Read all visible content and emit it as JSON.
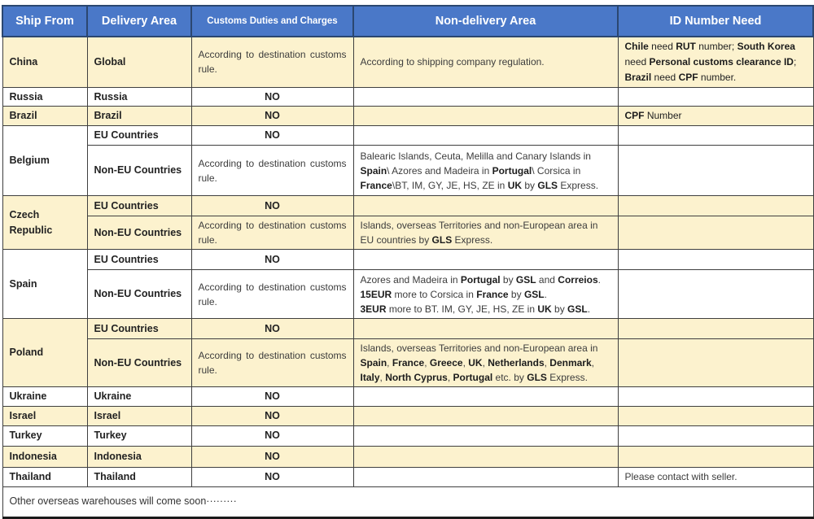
{
  "colors": {
    "header_bg": "#4A78C8",
    "header_border": "#2B4770",
    "header_text": "#FFFFFF",
    "row_highlight": "#FCF2CE",
    "grid_border": "#3F3F3F"
  },
  "header": {
    "ship_from": "Ship From",
    "delivery_area": "Delivery Area",
    "customs": "Customs Duties and Charges",
    "non_delivery": "Non-delivery Area",
    "id_need": "ID Number Need"
  },
  "rows": {
    "china": {
      "ship": "China",
      "area": "Global",
      "customs": "According to destination customs rule.",
      "nondelivery": "According to shipping company regulation.",
      "id_rich": [
        {
          "t": "Chile",
          "b": true
        },
        {
          "t": " need "
        },
        {
          "t": "RUT",
          "b": true
        },
        {
          "t": " number; "
        },
        {
          "t": "South Korea",
          "b": true
        },
        {
          "t": " need "
        },
        {
          "t": "Personal customs clearance ID",
          "b": true
        },
        {
          "t": "; "
        },
        {
          "t": "Brazil",
          "b": true
        },
        {
          "t": " need "
        },
        {
          "t": "CPF",
          "b": true
        },
        {
          "t": " number."
        }
      ]
    },
    "russia": {
      "ship": "Russia",
      "area": "Russia",
      "customs": "NO"
    },
    "brazil": {
      "ship": "Brazil",
      "area": "Brazil",
      "customs": "NO",
      "id_rich": [
        {
          "t": "CPF",
          "b": true
        },
        {
          "t": " Number"
        }
      ]
    },
    "belgium": {
      "ship": "Belgium",
      "eu_area": "EU Countries",
      "eu_customs": "NO",
      "noneu_area": "Non-EU Countries",
      "noneu_customs": "According to destination customs rule.",
      "noneu_nondelivery_rich": [
        {
          "t": "Balearic Islands, Ceuta, Melilla and Canary Islands in "
        },
        {
          "t": "Spain",
          "b": true
        },
        {
          "t": "\\ Azores and Madeira in "
        },
        {
          "t": "Portugal",
          "b": true
        },
        {
          "t": "\\ Corsica in "
        },
        {
          "t": "France",
          "b": true
        },
        {
          "t": "\\BT, IM, GY, JE, HS, ZE in "
        },
        {
          "t": "UK",
          "b": true
        },
        {
          "t": " by "
        },
        {
          "t": "GLS",
          "b": true
        },
        {
          "t": " Express."
        }
      ]
    },
    "czech": {
      "ship": "Czech Republic",
      "eu_area": "EU Countries",
      "eu_customs": "NO",
      "noneu_area": "Non-EU Countries",
      "noneu_customs": "According to destination customs rule.",
      "noneu_nondelivery_rich": [
        {
          "t": "Islands, overseas Territories and non-European area in EU countries by "
        },
        {
          "t": "GLS",
          "b": true
        },
        {
          "t": " Express."
        }
      ]
    },
    "spain": {
      "ship": "Spain",
      "eu_area": "EU Countries",
      "eu_customs": "NO",
      "noneu_area": "Non-EU Countries",
      "noneu_customs": "According to destination customs rule.",
      "noneu_nondelivery_rich": [
        {
          "t": "Azores and Madeira in "
        },
        {
          "t": "Portugal",
          "b": true
        },
        {
          "t": " by "
        },
        {
          "t": "GSL",
          "b": true
        },
        {
          "t": " and "
        },
        {
          "t": "Correios",
          "b": true
        },
        {
          "t": "."
        },
        {
          "br": true
        },
        {
          "t": "15EUR",
          "b": true
        },
        {
          "t": " more to Corsica in "
        },
        {
          "t": "France",
          "b": true
        },
        {
          "t": " by "
        },
        {
          "t": "GSL",
          "b": true
        },
        {
          "t": "."
        },
        {
          "br": true
        },
        {
          "t": "3EUR",
          "b": true
        },
        {
          "t": " more to BT. IM, GY, JE, HS, ZE in "
        },
        {
          "t": "UK",
          "b": true
        },
        {
          "t": " by "
        },
        {
          "t": "GSL",
          "b": true
        },
        {
          "t": "."
        }
      ]
    },
    "poland": {
      "ship": "Poland",
      "eu_area": "EU Countries",
      "eu_customs": "NO",
      "noneu_area": "Non-EU Countries",
      "noneu_customs": "According to destination customs rule.",
      "noneu_nondelivery_rich": [
        {
          "t": "Islands, overseas Territories and non-European area in "
        },
        {
          "t": "Spain",
          "b": true
        },
        {
          "t": ", "
        },
        {
          "t": "France",
          "b": true
        },
        {
          "t": ", "
        },
        {
          "t": "Greece",
          "b": true
        },
        {
          "t": ", "
        },
        {
          "t": "UK",
          "b": true
        },
        {
          "t": ", "
        },
        {
          "t": "Netherlands",
          "b": true
        },
        {
          "t": ", "
        },
        {
          "t": "Denmark",
          "b": true
        },
        {
          "t": ", "
        },
        {
          "t": "Italy",
          "b": true
        },
        {
          "t": ", "
        },
        {
          "t": "North Cyprus",
          "b": true
        },
        {
          "t": ", "
        },
        {
          "t": "Portugal",
          "b": true
        },
        {
          "t": " etc. by "
        },
        {
          "t": "GLS",
          "b": true
        },
        {
          "t": " Express."
        }
      ]
    },
    "ukraine": {
      "ship": "Ukraine",
      "area": "Ukraine",
      "customs": "NO"
    },
    "israel": {
      "ship": "Israel",
      "area": "Israel",
      "customs": "NO"
    },
    "turkey": {
      "ship": "Turkey",
      "area": "Turkey",
      "customs": "NO"
    },
    "indonesia": {
      "ship": "Indonesia",
      "area": "Indonesia",
      "customs": "NO"
    },
    "thailand": {
      "ship": "Thailand",
      "area": "Thailand",
      "customs": "NO",
      "id_note": "Please contact with seller."
    }
  },
  "footer": {
    "note": "Other overseas warehouses will come soon·········"
  }
}
